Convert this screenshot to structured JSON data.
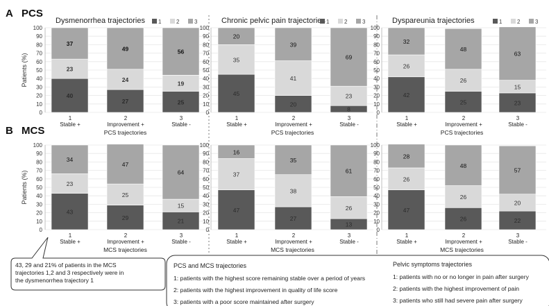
{
  "colors": {
    "seg1": "#595959",
    "seg2": "#d9d9d9",
    "seg3": "#a6a6a6",
    "frame": "#ffffff",
    "axis": "#444444"
  },
  "legend": {
    "items": [
      {
        "key": "1",
        "color": "#595959"
      },
      {
        "key": "2",
        "color": "#d9d9d9"
      },
      {
        "key": "3",
        "color": "#a6a6a6"
      }
    ]
  },
  "chart_data": {
    "type": "bar",
    "stacked": true,
    "ylabel": "Patients (%)",
    "ylim": [
      0,
      100
    ],
    "yticks": [
      0,
      10,
      20,
      30,
      40,
      50,
      60,
      70,
      80,
      90,
      100
    ],
    "stack_keys": [
      "1",
      "2",
      "3"
    ],
    "categories": [
      "1\nStable +",
      "2\nImprovement +",
      "3\nStable -"
    ],
    "rows": [
      {
        "letter": "A",
        "title": "PCS",
        "panels": [
          {
            "title": "Dysmenorrhea trajectories",
            "xlabel": "PCS trajectories",
            "bars": [
              [
                40,
                23,
                37
              ],
              [
                27,
                24,
                49
              ],
              [
                25,
                19,
                56
              ]
            ]
          },
          {
            "title": "Chronic pelvic pain trajectories",
            "xlabel": "PCS trajectories",
            "bars": [
              [
                45,
                35,
                20
              ],
              [
                20,
                41,
                39
              ],
              [
                8,
                23,
                69
              ]
            ]
          },
          {
            "title": "Dyspareunia trajectories",
            "xlabel": "PCS trajectories",
            "bars": [
              [
                42,
                26,
                32
              ],
              [
                25,
                26,
                48
              ],
              [
                23,
                15,
                63
              ]
            ]
          }
        ]
      },
      {
        "letter": "B",
        "title": "MCS",
        "panels": [
          {
            "title": "",
            "xlabel": "MCS trajectories",
            "bars": [
              [
                43,
                23,
                34
              ],
              [
                29,
                25,
                47
              ],
              [
                21,
                15,
                64
              ]
            ]
          },
          {
            "title": "",
            "xlabel": "MCS trajectories",
            "bars": [
              [
                47,
                37,
                16
              ],
              [
                27,
                38,
                35
              ],
              [
                13,
                26,
                61
              ]
            ]
          },
          {
            "title": "",
            "xlabel": "MCS trajectories",
            "bars": [
              [
                47,
                26,
                28
              ],
              [
                26,
                26,
                48
              ],
              [
                22,
                20,
                57
              ]
            ]
          }
        ]
      }
    ]
  },
  "callout": {
    "text": "43, 29 and 21% of patients in the MCS trajectories 1,2 and 3 respectively were in the dysmenorrhea trajectory 1"
  },
  "notes": {
    "left_title": "PCS and MCS trajectories",
    "left_lines": [
      "1: patients with the highest score remaining stable over a period of years",
      "2: patients with the highest improvement in quality of life score",
      "3: patients with a poor score maintained after surgery"
    ],
    "right_title": "Pelvic symptoms trajectories",
    "right_lines": [
      "1: patients with no or no longer in pain after surgery",
      "2: patients with the highest improvement of pain",
      "3: patients who still had severe pain after surgery"
    ]
  }
}
